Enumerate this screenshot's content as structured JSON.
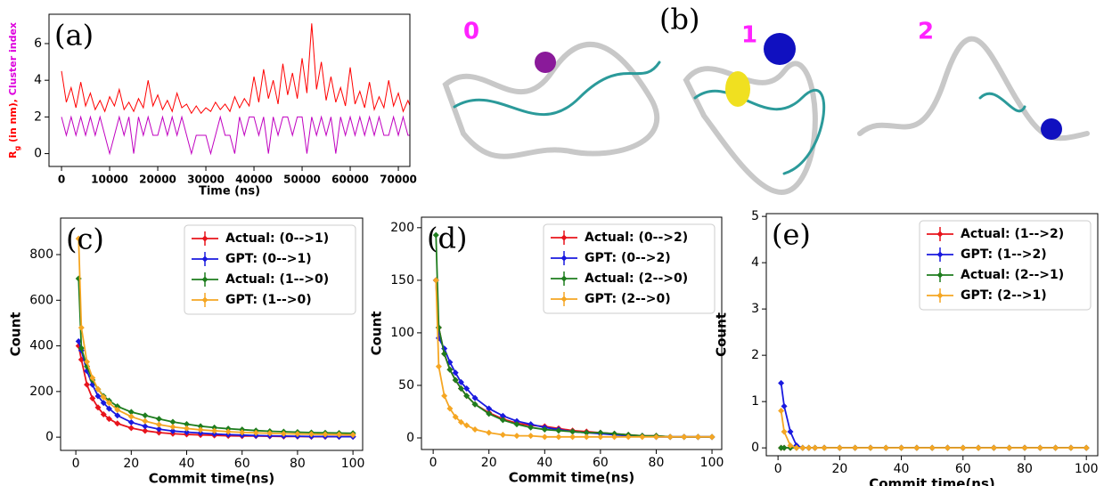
{
  "panel_b": {
    "label": "(b)",
    "clusters": [
      "0",
      "1",
      "2"
    ]
  },
  "chart_data": [
    {
      "type": "line",
      "panel_label": "(a)",
      "xlabel": "Time (ns)",
      "ylabel_parts": [
        {
          "text": "R",
          "color": "#ff0000"
        },
        {
          "text": "g",
          "color": "#ff0000",
          "sub": true
        },
        {
          "text": " (in nm), ",
          "color": "#ff0000"
        },
        {
          "text": "Cluster index",
          "color": "#dd00dd"
        }
      ],
      "x": [
        0,
        1000,
        2000,
        3000,
        4000,
        5000,
        6000,
        7000,
        8000,
        9000,
        10000,
        11000,
        12000,
        13000,
        14000,
        15000,
        16000,
        17000,
        18000,
        19000,
        20000,
        21000,
        22000,
        23000,
        24000,
        25000,
        26000,
        27000,
        28000,
        29000,
        30000,
        31000,
        32000,
        33000,
        34000,
        35000,
        36000,
        37000,
        38000,
        39000,
        40000,
        41000,
        42000,
        43000,
        44000,
        45000,
        46000,
        47000,
        48000,
        49000,
        50000,
        51000,
        52000,
        53000,
        54000,
        55000,
        56000,
        57000,
        58000,
        59000,
        60000,
        61000,
        62000,
        63000,
        64000,
        65000,
        66000,
        67000,
        68000,
        69000,
        70000,
        71000,
        72000,
        73000
      ],
      "series": [
        {
          "color": "#ff0000",
          "values": [
            4.5,
            2.8,
            3.6,
            2.5,
            3.9,
            2.6,
            3.3,
            2.4,
            2.9,
            2.3,
            3.1,
            2.6,
            3.5,
            2.4,
            2.8,
            2.3,
            3.0,
            2.5,
            4.0,
            2.6,
            3.2,
            2.4,
            2.9,
            2.3,
            3.3,
            2.5,
            2.7,
            2.2,
            2.6,
            2.2,
            2.5,
            2.3,
            2.8,
            2.4,
            2.7,
            2.3,
            3.1,
            2.5,
            3.0,
            2.6,
            4.2,
            2.8,
            4.6,
            3.0,
            4.0,
            2.7,
            4.9,
            3.2,
            4.4,
            3.0,
            5.2,
            3.3,
            7.1,
            3.5,
            5.0,
            2.9,
            4.2,
            2.8,
            3.6,
            2.6,
            4.7,
            2.7,
            3.4,
            2.5,
            3.9,
            2.4,
            3.1,
            2.5,
            4.0,
            2.6,
            3.3,
            2.3,
            2.9,
            2.2
          ]
        },
        {
          "color": "#c000c0",
          "values": [
            2,
            1,
            2,
            1,
            2,
            1,
            2,
            1,
            2,
            1,
            0,
            1,
            2,
            1,
            2,
            0,
            2,
            1,
            2,
            1,
            1,
            2,
            1,
            2,
            1,
            2,
            1,
            0,
            1,
            1,
            1,
            0,
            1,
            2,
            1,
            1,
            0,
            2,
            1,
            2,
            2,
            1,
            2,
            0,
            2,
            1,
            2,
            2,
            1,
            2,
            2,
            0,
            2,
            1,
            2,
            1,
            2,
            0,
            2,
            1,
            2,
            1,
            2,
            1,
            2,
            1,
            2,
            1,
            1,
            2,
            1,
            2,
            1,
            1
          ]
        }
      ],
      "xlim": [
        -2600,
        72400
      ],
      "ylim": [
        -0.7,
        7.6
      ],
      "xticks": [
        0,
        10000,
        20000,
        30000,
        40000,
        50000,
        60000,
        70000
      ],
      "yticks": [
        0,
        2,
        4,
        6
      ]
    },
    {
      "type": "line",
      "panel_label": "(c)",
      "xlabel": "Commit time(ns)",
      "ylabel": "Count",
      "legend": "upper right",
      "marker": "diamond",
      "x": [
        1,
        2,
        4,
        6,
        8,
        10,
        12,
        15,
        20,
        25,
        30,
        35,
        40,
        45,
        50,
        55,
        60,
        65,
        70,
        75,
        80,
        85,
        90,
        95,
        100
      ],
      "series": [
        {
          "name": "Actual: (0-->1)",
          "color": "#e8141c",
          "values": [
            400,
            340,
            230,
            170,
            130,
            100,
            80,
            60,
            40,
            28,
            20,
            15,
            12,
            10,
            8,
            6,
            5,
            5,
            4,
            3,
            3,
            2,
            2,
            2,
            2
          ]
        },
        {
          "name": "GPT: (0-->1)",
          "color": "#1a1adf",
          "values": [
            420,
            380,
            290,
            230,
            180,
            150,
            125,
            95,
            65,
            48,
            35,
            27,
            22,
            18,
            14,
            11,
            9,
            7,
            6,
            5,
            4,
            3,
            3,
            2,
            2
          ]
        },
        {
          "name": "Actual: (1-->0)",
          "color": "#1e7d1e",
          "values": [
            695,
            390,
            310,
            250,
            210,
            180,
            160,
            135,
            110,
            95,
            80,
            67,
            57,
            48,
            42,
            37,
            33,
            29,
            26,
            24,
            22,
            20,
            19,
            18,
            17
          ]
        },
        {
          "name": "GPT: (1-->0)",
          "color": "#f5a623",
          "values": [
            870,
            480,
            330,
            260,
            210,
            175,
            150,
            120,
            90,
            70,
            55,
            45,
            38,
            32,
            28,
            24,
            21,
            19,
            17,
            15,
            14,
            13,
            12,
            11,
            10
          ]
        }
      ],
      "xlim": [
        -5.5,
        103.5
      ],
      "ylim": [
        -58,
        960
      ],
      "xticks": [
        0,
        20,
        40,
        60,
        80,
        100
      ],
      "yticks": [
        0,
        200,
        400,
        600,
        800
      ]
    },
    {
      "type": "line",
      "panel_label": "(d)",
      "xlabel": "Commit time(ns)",
      "ylabel": "Count",
      "legend": "upper right",
      "marker": "diamond",
      "x": [
        1,
        2,
        4,
        6,
        8,
        10,
        12,
        15,
        20,
        25,
        30,
        35,
        40,
        45,
        50,
        55,
        60,
        65,
        70,
        75,
        80,
        85,
        90,
        95,
        100
      ],
      "series": [
        {
          "name": "Actual: (0-->2)",
          "color": "#e8141c",
          "values": [
            150,
            105,
            80,
            65,
            55,
            47,
            40,
            32,
            24,
            18,
            14,
            12,
            11,
            9,
            7,
            6,
            5,
            4,
            3,
            2,
            2,
            1,
            1,
            1,
            1
          ]
        },
        {
          "name": "GPT: (0-->2)",
          "color": "#1a1adf",
          "values": [
            150,
            95,
            85,
            72,
            62,
            53,
            47,
            38,
            28,
            21,
            16,
            13,
            10,
            8,
            6,
            5,
            4,
            3,
            2,
            2,
            1,
            1,
            1,
            1,
            1
          ]
        },
        {
          "name": "Actual: (2-->0)",
          "color": "#1e7d1e",
          "values": [
            193,
            105,
            80,
            65,
            55,
            47,
            40,
            32,
            23,
            17,
            13,
            10,
            8,
            7,
            6,
            5,
            5,
            4,
            3,
            2,
            2,
            1,
            1,
            1,
            1
          ]
        },
        {
          "name": "GPT: (2-->0)",
          "color": "#f5a623",
          "values": [
            150,
            68,
            40,
            28,
            20,
            15,
            12,
            8,
            5,
            3,
            2,
            2,
            1,
            1,
            1,
            1,
            1,
            1,
            1,
            1,
            1,
            1,
            1,
            1,
            1
          ]
        }
      ],
      "xlim": [
        -4.2,
        103.5
      ],
      "ylim": [
        -11,
        210
      ],
      "xticks": [
        0,
        20,
        40,
        60,
        80,
        100
      ],
      "yticks": [
        0,
        50,
        100,
        150,
        200
      ]
    },
    {
      "type": "line",
      "panel_label": "(e)",
      "xlabel": "Commit time(ns)",
      "ylabel": "Count",
      "legend": "upper right",
      "marker": "diamond",
      "x": [
        1,
        2,
        4,
        6,
        8,
        10,
        12,
        15,
        20,
        25,
        30,
        35,
        40,
        45,
        50,
        55,
        60,
        65,
        70,
        75,
        80,
        85,
        90,
        95,
        100
      ],
      "series": [
        {
          "name": "Actual: (1-->2)",
          "color": "#e8141c",
          "values": [
            0,
            0,
            0,
            0,
            0,
            0,
            0,
            0,
            0,
            0,
            0,
            0,
            0,
            0,
            0,
            0,
            0,
            0,
            0,
            0,
            0,
            0,
            0,
            0,
            0
          ]
        },
        {
          "name": "GPT: (1-->2)",
          "color": "#1a1adf",
          "values": [
            1.4,
            0.9,
            0.35,
            0.05,
            0,
            0,
            0,
            0,
            0,
            0,
            0,
            0,
            0,
            0,
            0,
            0,
            0,
            0,
            0,
            0,
            0,
            0,
            0,
            0,
            0
          ]
        },
        {
          "name": "Actual: (2-->1)",
          "color": "#1e7d1e",
          "values": [
            0,
            0,
            0,
            0,
            0,
            0,
            0,
            0,
            0,
            0,
            0,
            0,
            0,
            0,
            0,
            0,
            0,
            0,
            0,
            0,
            0,
            0,
            0,
            0,
            0
          ]
        },
        {
          "name": "GPT: (2-->1)",
          "color": "#f5a623",
          "values": [
            0.8,
            0.35,
            0.05,
            0,
            0,
            0,
            0,
            0,
            0,
            0,
            0,
            0,
            0,
            0,
            0,
            0,
            0,
            0,
            0,
            0,
            0,
            0,
            0,
            0,
            0
          ]
        }
      ],
      "xlim": [
        -3.8,
        103.7
      ],
      "ylim": [
        -0.17,
        5.06
      ],
      "xticks": [
        0,
        20,
        40,
        60,
        80,
        100
      ],
      "yticks": [
        0,
        1,
        2,
        3,
        4,
        5
      ]
    }
  ]
}
